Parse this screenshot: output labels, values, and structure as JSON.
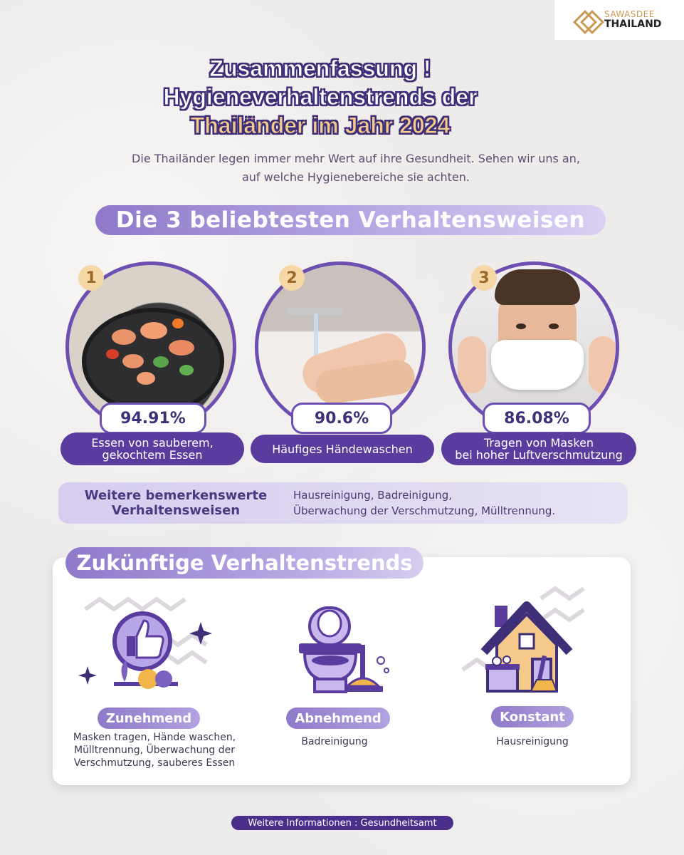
{
  "brand": {
    "line1": "SAWASDEE",
    "line2": "THAILAND"
  },
  "title": {
    "line1": "Zusammenfassung !",
    "line2": "Hygieneverhaltenstrends der",
    "line3": "Thailänder im Jahr 2024"
  },
  "subtitle": {
    "line1": "Die Thailänder legen immer mehr Wert auf ihre Gesundheit. Sehen wir uns an,",
    "line2": "auf welche Hygienebereiche sie achten."
  },
  "top3": {
    "heading": "Die 3 beliebtesten Verhaltensweisen",
    "items": [
      {
        "rank": "1",
        "percent": "94.91%",
        "label_line1": "Essen von sauberem,",
        "label_line2": "gekochtem Essen"
      },
      {
        "rank": "2",
        "percent": "90.6%",
        "label_line1": "Häufiges Händewaschen",
        "label_line2": ""
      },
      {
        "rank": "3",
        "percent": "86.08%",
        "label_line1": "Tragen von Masken",
        "label_line2": "bei hoher Luftverschmutzung"
      }
    ]
  },
  "other": {
    "heading_line1": "Weitere bemerkenswerte",
    "heading_line2": "Verhaltensweisen",
    "text_line1": "Hausreinigung, Badreinigung,",
    "text_line2": "Überwachung der Verschmutzung, Mülltrennung."
  },
  "future": {
    "heading": "Zukünftige Verhaltenstrends",
    "trends": [
      {
        "status": "Zunehmend",
        "text_line1": "Masken tragen, Hände waschen,",
        "text_line2": "Mülltrennung, Überwachung der",
        "text_line3": "Verschmutzung, sauberes Essen",
        "icon": "thumbs-up-icon"
      },
      {
        "status": "Abnehmend",
        "text_line1": "Badreinigung",
        "icon": "toilet-icon"
      },
      {
        "status": "Konstant",
        "text_line1": "Hausreinigung",
        "icon": "house-icon"
      }
    ]
  },
  "footer": {
    "source": "Weitere Informationen : Gesundheitsamt"
  },
  "colors": {
    "primary": "#5a3c9e",
    "accent": "#f3c98c",
    "pill": "#8e79c9"
  }
}
